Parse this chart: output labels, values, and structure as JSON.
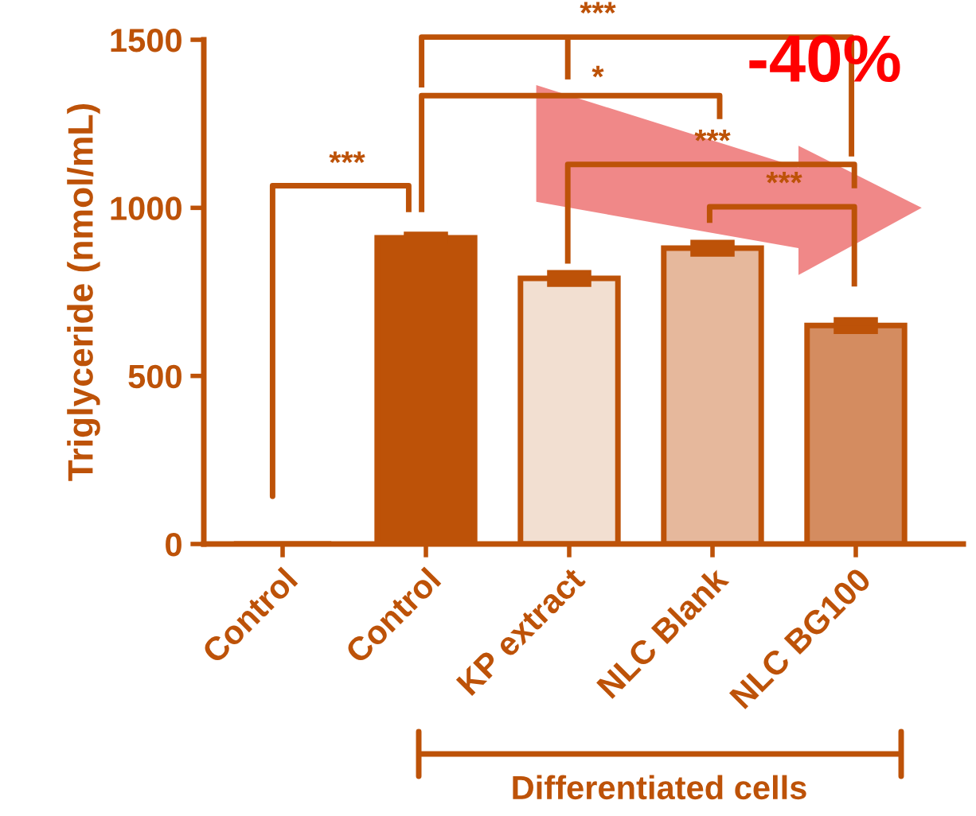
{
  "chart_data": {
    "type": "bar",
    "ylabel": "Triglyceride (nmol/mL)",
    "xlabel": "Differentiated cells",
    "categories": [
      "Control",
      "Control",
      "KP extract",
      "NLC Blank",
      "NLC BG100"
    ],
    "values": [
      0,
      911,
      790,
      880,
      650
    ],
    "errors": [
      null,
      5,
      12,
      12,
      12
    ],
    "colors": [
      "#bd5208",
      "#bd5208",
      "#f2dfd1",
      "#e6b89c",
      "#d48c60"
    ],
    "ylim": [
      0,
      1500
    ],
    "yticks": [
      0,
      500,
      1000,
      1500
    ],
    "grid": false,
    "legend": false,
    "annotations": [
      "***",
      "*",
      "***",
      "***",
      "***",
      "-40%"
    ]
  }
}
